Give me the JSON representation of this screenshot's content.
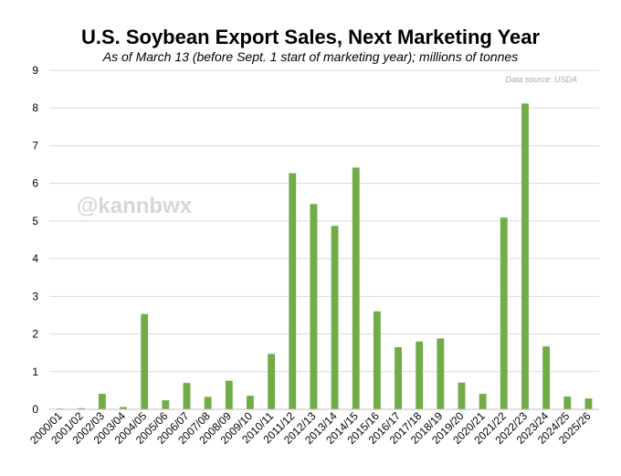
{
  "chart_data": {
    "type": "bar",
    "title": "U.S. Soybean Export Sales, Next Marketing Year",
    "subtitle": "As of March 13 (before Sept. 1 start of marketing year); millions of tonnes",
    "source_note": "Data source: USDA",
    "watermark": "@kannbwx",
    "xlabel": "",
    "ylabel": "",
    "ylim": [
      0,
      9
    ],
    "yticks": [
      "0",
      "1",
      "2",
      "3",
      "4",
      "5",
      "6",
      "7",
      "8",
      "9"
    ],
    "grid": true,
    "legend": "none",
    "bar_color": "#70ad47",
    "categories": [
      "2000/01",
      "2001/02",
      "2002/03",
      "2003/04",
      "2004/05",
      "2005/06",
      "2006/07",
      "2007/08",
      "2008/09",
      "2009/10",
      "2010/11",
      "2011/12",
      "2012/13",
      "2013/14",
      "2014/15",
      "2015/16",
      "2016/17",
      "2017/18",
      "2018/19",
      "2019/20",
      "2020/21",
      "2021/22",
      "2022/23",
      "2023/24",
      "2024/25",
      "2025/26"
    ],
    "values": [
      0.02,
      0.03,
      0.41,
      0.06,
      2.53,
      0.24,
      0.7,
      0.33,
      0.76,
      0.36,
      1.47,
      6.27,
      5.45,
      4.87,
      6.42,
      2.6,
      1.65,
      1.8,
      1.88,
      0.71,
      0.41,
      5.09,
      8.12,
      1.67,
      0.34,
      0.29
    ]
  }
}
